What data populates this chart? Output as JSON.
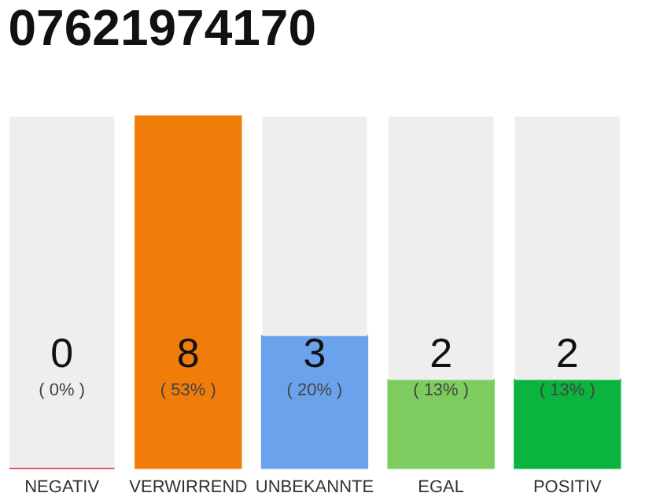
{
  "chart_data": {
    "type": "bar",
    "title": "07621974170",
    "stacked": true,
    "categories": [
      "NEGATIV",
      "VERWIRREND",
      "UNBEKANNTE",
      "EGAL",
      "POSITIV"
    ],
    "series": [
      {
        "colors": [
          "#e8213a",
          "#f07d0a",
          "#6aa3ec",
          "#7ccc5f",
          "#0bb33f"
        ],
        "values": [
          0,
          8,
          3,
          2,
          2
        ],
        "value_labels": [
          "0",
          "8",
          "3",
          "2",
          "2"
        ]
      },
      {
        "color": "#eeeeee",
        "values": [
          8,
          0,
          5,
          6,
          6
        ]
      }
    ],
    "annotations": [
      "( 0% )",
      "( 53% )",
      "( 20% )",
      "( 13% )",
      "( 13% )"
    ]
  }
}
